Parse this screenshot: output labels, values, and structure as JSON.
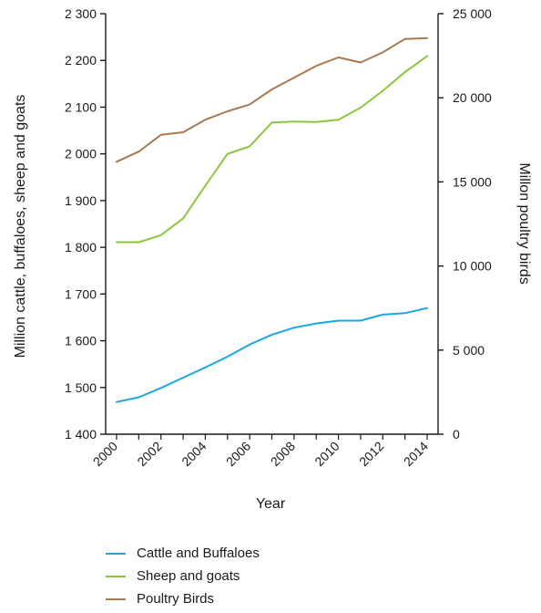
{
  "chart_data": {
    "type": "line",
    "xlabel": "Year",
    "ylabel_left": "Million cattle, buffaloes, sheep and goats",
    "ylabel_right": "Millon poultry birds",
    "x": [
      2000,
      2001,
      2002,
      2003,
      2004,
      2005,
      2006,
      2007,
      2008,
      2009,
      2010,
      2011,
      2012,
      2013,
      2014
    ],
    "x_ticks": [
      "2000",
      "2002",
      "2004",
      "2006",
      "2008",
      "2010",
      "2012",
      "2014"
    ],
    "ylim_left": [
      1400,
      2300
    ],
    "ylim_right": [
      0,
      25000
    ],
    "y_ticks_left": [
      "1 400",
      "1 500",
      "1 600",
      "1 700",
      "1 800",
      "1 900",
      "2 000",
      "2 100",
      "2 200",
      "2 300"
    ],
    "y_ticks_right": [
      "0",
      "5 000",
      "10 000",
      "15 000",
      "20 000",
      "25 000"
    ],
    "series": [
      {
        "name": "Cattle and Buffaloes",
        "axis": "left",
        "color": "#1ba8e0",
        "values": [
          1469,
          1479,
          1499,
          1521,
          1543,
          1566,
          1592,
          1613,
          1628,
          1637,
          1643,
          1643,
          1656,
          1659,
          1670
        ]
      },
      {
        "name": "Sheep and goats",
        "axis": "left",
        "color": "#8cc63f",
        "values": [
          1811,
          1811,
          1826,
          1862,
          1932,
          2000,
          2016,
          2067,
          2069,
          2068,
          2073,
          2099,
          2135,
          2175,
          2209
        ]
      },
      {
        "name": "Poultry Birds",
        "axis": "right",
        "color": "#a87a50",
        "values": [
          16200,
          16800,
          17800,
          17950,
          18700,
          19200,
          19600,
          20500,
          21200,
          21900,
          22400,
          22100,
          22700,
          23500,
          23550
        ]
      }
    ],
    "legend_position": "bottom-left",
    "grid": false
  }
}
